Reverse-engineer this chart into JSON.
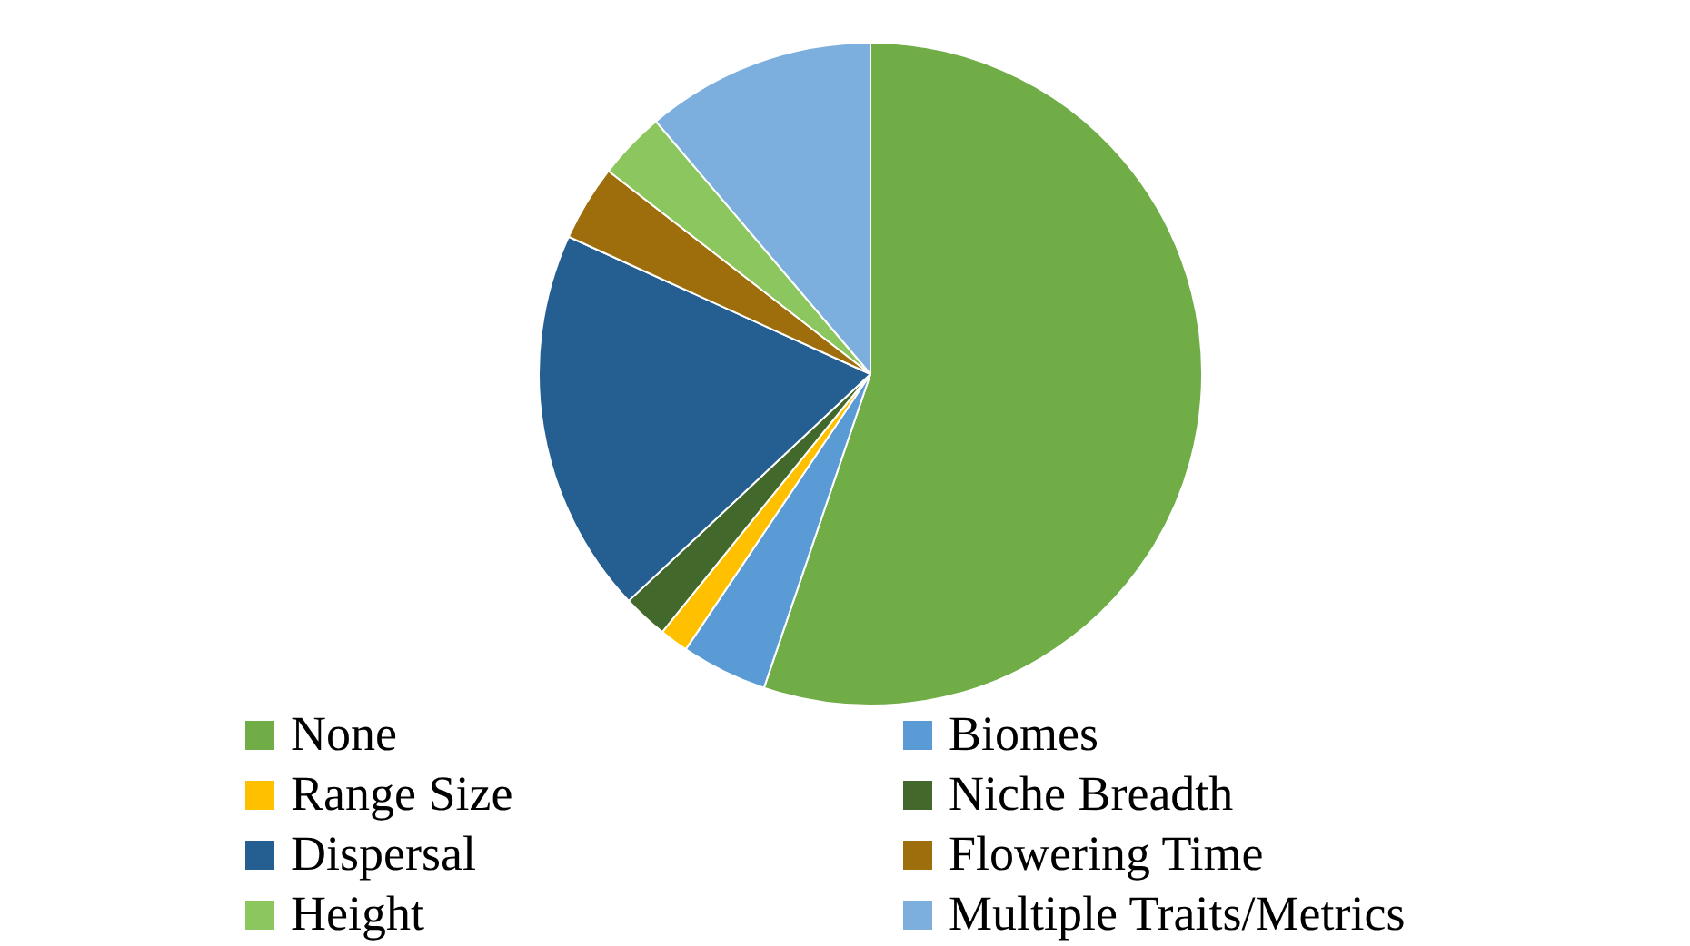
{
  "chart_data": {
    "type": "pie",
    "categories": [
      "None",
      "Biomes",
      "Range Size",
      "Niche Breadth",
      "Dispersal",
      "Flowering Time",
      "Height",
      "Multiple Traits/Metrics"
    ],
    "values": [
      55.2,
      4.2,
      1.4,
      2.2,
      18.8,
      3.7,
      3.3,
      11.2
    ],
    "colors": [
      "#70ad47",
      "#5b9bd5",
      "#ffc000",
      "#43682b",
      "#255e91",
      "#9e6e0d",
      "#8cc65e",
      "#7cafdd"
    ],
    "legend": "bottom"
  }
}
